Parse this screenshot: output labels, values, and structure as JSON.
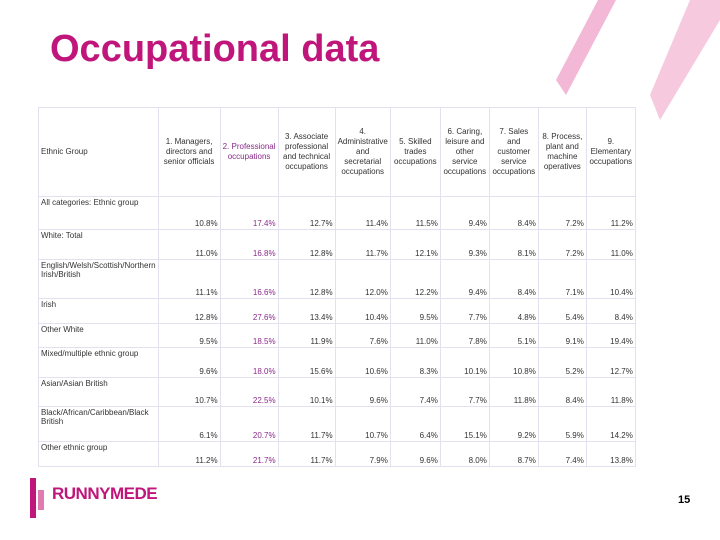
{
  "title": "Occupational data",
  "table": {
    "header": [
      "Ethnic Group",
      "1. Managers, directors and senior officials",
      "2. Professional occupations",
      "3. Associate professional and technical occupations",
      "4. Administrative and secretarial occupations",
      "5. Skilled trades occupations",
      "6. Caring, leisure and other service occupations",
      "7. Sales and customer service occupations",
      "8. Process, plant and machine operatives",
      "9. Elementary occupations"
    ],
    "rows": [
      [
        "All categories: Ethnic group",
        "10.8%",
        "17.4%",
        "12.7%",
        "11.4%",
        "11.5%",
        "9.4%",
        "8.4%",
        "7.2%",
        "11.2%"
      ],
      [
        "White: Total",
        "11.0%",
        "16.8%",
        "12.8%",
        "11.7%",
        "12.1%",
        "9.3%",
        "8.1%",
        "7.2%",
        "11.0%"
      ],
      [
        "English/Welsh/Scottish/Northern Irish/British",
        "11.1%",
        "16.6%",
        "12.8%",
        "12.0%",
        "12.2%",
        "9.4%",
        "8.4%",
        "7.1%",
        "10.4%"
      ],
      [
        "Irish",
        "12.8%",
        "27.6%",
        "13.4%",
        "10.4%",
        "9.5%",
        "7.7%",
        "4.8%",
        "5.4%",
        "8.4%"
      ],
      [
        "Other White",
        "9.5%",
        "18.5%",
        "11.9%",
        "7.6%",
        "11.0%",
        "7.8%",
        "5.1%",
        "9.1%",
        "19.4%"
      ],
      [
        "Mixed/multiple ethnic group",
        "9.6%",
        "18.0%",
        "15.6%",
        "10.6%",
        "8.3%",
        "10.1%",
        "10.8%",
        "5.2%",
        "12.7%"
      ],
      [
        "Asian/Asian British",
        "10.7%",
        "22.5%",
        "10.1%",
        "9.6%",
        "7.4%",
        "7.7%",
        "11.8%",
        "8.4%",
        "11.8%"
      ],
      [
        "Black/African/Caribbean/Black British",
        "6.1%",
        "20.7%",
        "11.7%",
        "10.7%",
        "6.4%",
        "15.1%",
        "9.2%",
        "5.9%",
        "14.2%"
      ],
      [
        "Other ethnic group",
        "11.2%",
        "21.7%",
        "11.7%",
        "7.9%",
        "9.6%",
        "8.0%",
        "8.7%",
        "7.4%",
        "13.8%"
      ]
    ]
  },
  "logo": "RUNNYMEDE",
  "page_number": "15"
}
